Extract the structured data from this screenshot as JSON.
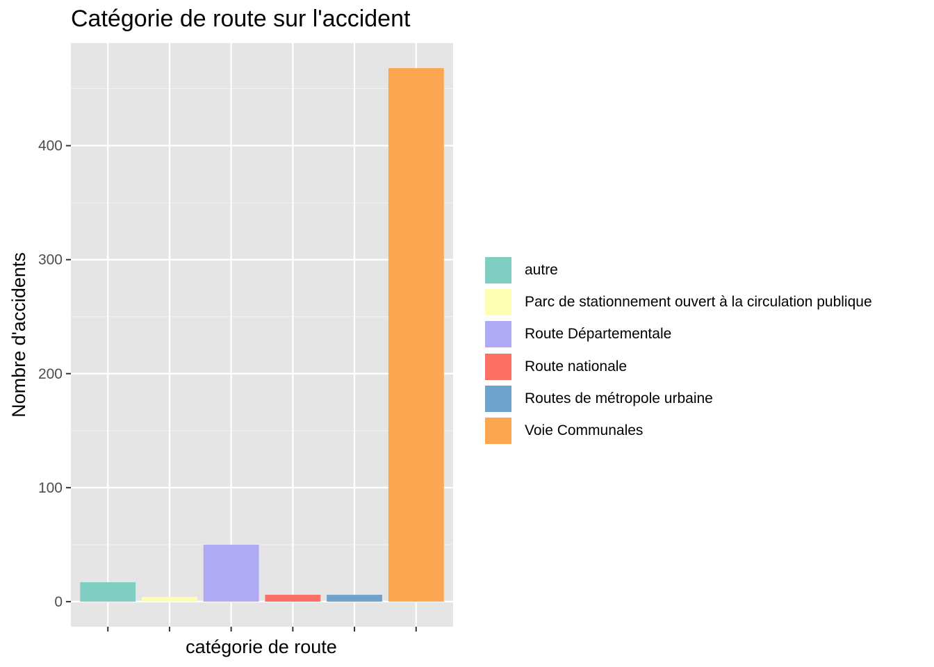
{
  "chart_data": {
    "type": "bar",
    "title": "Catégorie de route sur l'accident",
    "xlabel": "catégorie de route",
    "ylabel": "Nombre d'accidents",
    "categories": [
      "autre",
      "Parc de stationnement ouvert à la circulation publique",
      "Route Départementale",
      "Route nationale",
      "Routes de métropole urbaine",
      "Voie Communales"
    ],
    "values": [
      17,
      4,
      50,
      6,
      6,
      468
    ],
    "colors": [
      "#80cdc1",
      "#ffffb3",
      "#b0aaf5",
      "#fb6f65",
      "#6fa3cb",
      "#fca651"
    ],
    "ylim": [
      -22,
      490
    ],
    "yticks": [
      0,
      100,
      200,
      300,
      400
    ],
    "x_tick_labels": false,
    "grid": true,
    "legend_position": "right",
    "background": "#e5e5e5"
  }
}
